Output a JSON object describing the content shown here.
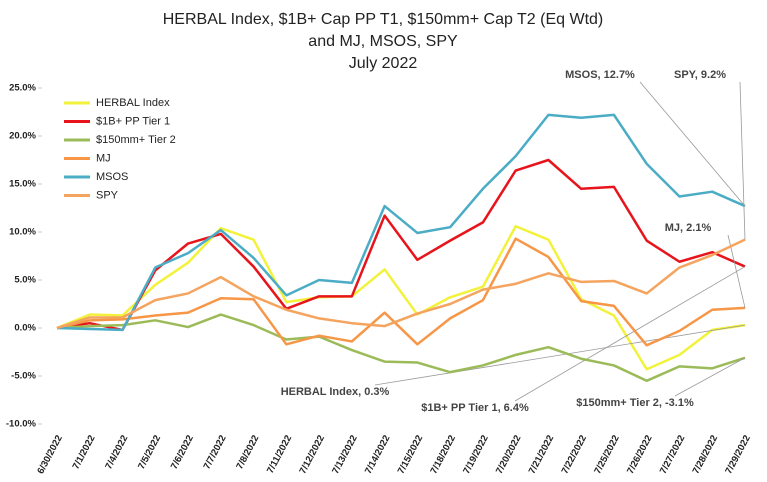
{
  "chart_data": {
    "type": "line",
    "title": [
      "HERBAL Index, $1B+ Cap PP T1, $150mm+ Cap T2  (Eq Wtd)",
      "and MJ, MSOS, SPY",
      "July 2022"
    ],
    "categories": [
      "6/30/2022",
      "7/1/2022",
      "7/4/2022",
      "7/5/2022",
      "7/6/2022",
      "7/7/2022",
      "7/8/2022",
      "7/11/2022",
      "7/12/2022",
      "7/13/2022",
      "7/14/2022",
      "7/15/2022",
      "7/18/2022",
      "7/19/2022",
      "7/20/2022",
      "7/21/2022",
      "7/22/2022",
      "7/25/2022",
      "7/26/2022",
      "7/27/2022",
      "7/28/2022",
      "7/29/2022"
    ],
    "ylim": [
      -10,
      25
    ],
    "yticks": [
      {
        "value": -10,
        "label": "-10.0%"
      },
      {
        "value": -5,
        "label": "-5.0%"
      },
      {
        "value": 0,
        "label": "0.0%"
      },
      {
        "value": 5,
        "label": "5.0%"
      },
      {
        "value": 10,
        "label": "10.0%"
      },
      {
        "value": 15,
        "label": "15.0%"
      },
      {
        "value": 20,
        "label": "20.0%"
      },
      {
        "value": 25,
        "label": "25.0%"
      }
    ],
    "series": [
      {
        "name": "HERBAL Index",
        "color": "#f2f23a",
        "end_label": "HERBAL Index, 0.3%",
        "values": [
          0,
          1.4,
          1.3,
          4.5,
          6.8,
          10.4,
          9.2,
          2.7,
          3.2,
          3.3,
          6.1,
          1.4,
          3.2,
          4.3,
          10.6,
          9.2,
          3.0,
          1.3,
          -4.3,
          -2.8,
          -0.2,
          0.3
        ]
      },
      {
        "name": "$1B+ PP Tier 1",
        "color": "#e8141c",
        "end_label": "$1B+ PP Tier 1, 6.4%",
        "values": [
          0,
          0.5,
          -0.2,
          6.0,
          8.8,
          9.8,
          6.4,
          2.0,
          3.3,
          3.3,
          11.7,
          7.1,
          9.1,
          11.0,
          16.4,
          17.5,
          14.5,
          14.7,
          9.1,
          6.9,
          7.9,
          6.4
        ]
      },
      {
        "name": "$150mm+ Tier 2",
        "color": "#9bbb59",
        "end_label": "$150mm+ Tier 2, -3.1%",
        "values": [
          0,
          0.2,
          0.3,
          0.8,
          0.1,
          1.4,
          0.3,
          -1.2,
          -0.9,
          -2.3,
          -3.5,
          -3.6,
          -4.6,
          -3.9,
          -2.8,
          -2.0,
          -3.2,
          -3.9,
          -5.5,
          -4.0,
          -4.2,
          -3.1
        ]
      },
      {
        "name": "MJ",
        "color": "#f79646",
        "end_label": "MJ, 2.1%",
        "values": [
          0,
          0.8,
          0.9,
          1.3,
          1.6,
          3.1,
          3.0,
          -1.7,
          -0.8,
          -1.4,
          1.6,
          -1.7,
          1.0,
          2.9,
          9.3,
          7.4,
          2.8,
          2.3,
          -1.8,
          -0.3,
          1.9,
          2.1
        ]
      },
      {
        "name": "MSOS",
        "color": "#4bacc6",
        "end_label": "MSOS, 12.7%",
        "values": [
          0,
          -0.1,
          -0.2,
          6.3,
          7.8,
          10.2,
          7.3,
          3.4,
          5.0,
          4.7,
          12.7,
          9.9,
          10.5,
          14.5,
          17.9,
          22.2,
          21.9,
          22.2,
          17.1,
          13.7,
          14.2,
          12.7
        ]
      },
      {
        "name": "SPY",
        "color": "#f4a45e",
        "end_label": "SPY, 9.2%",
        "values": [
          0,
          1.1,
          1.1,
          2.9,
          3.6,
          5.3,
          3.3,
          1.9,
          1.0,
          0.5,
          0.2,
          1.5,
          2.5,
          4.0,
          4.6,
          5.7,
          4.8,
          4.9,
          3.6,
          6.3,
          7.6,
          9.2
        ]
      }
    ]
  }
}
